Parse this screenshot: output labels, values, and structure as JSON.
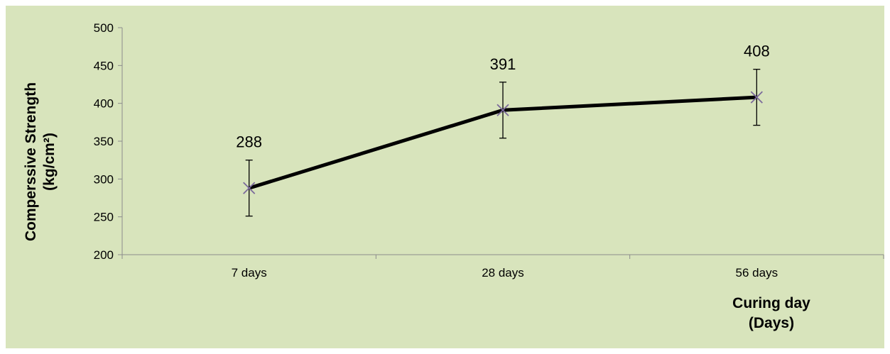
{
  "chart_data": {
    "type": "line",
    "categories": [
      "7 days",
      "28 days",
      "56 days"
    ],
    "series": [
      {
        "values": [
          288,
          391,
          408
        ],
        "error": [
          37,
          37,
          37
        ]
      }
    ],
    "data_labels": [
      "288",
      "391",
      "408"
    ],
    "ylim": [
      200,
      500
    ],
    "yticks": [
      200,
      250,
      300,
      350,
      400,
      450,
      500
    ],
    "ytick_labels": [
      "200",
      "250",
      "300",
      "350",
      "400",
      "450",
      "500"
    ],
    "ylabel_line1": "Comperssive Strength",
    "ylabel_line2": "(kg/cm²)",
    "xlabel_line1": "Curing day",
    "xlabel_line2": "(Days)",
    "grid": false,
    "colors": {
      "background": "#d8e4bc",
      "line": "#000000",
      "marker": "#7b6a9b",
      "error_bar": "#000000",
      "axis": "#8c8c8c"
    }
  }
}
